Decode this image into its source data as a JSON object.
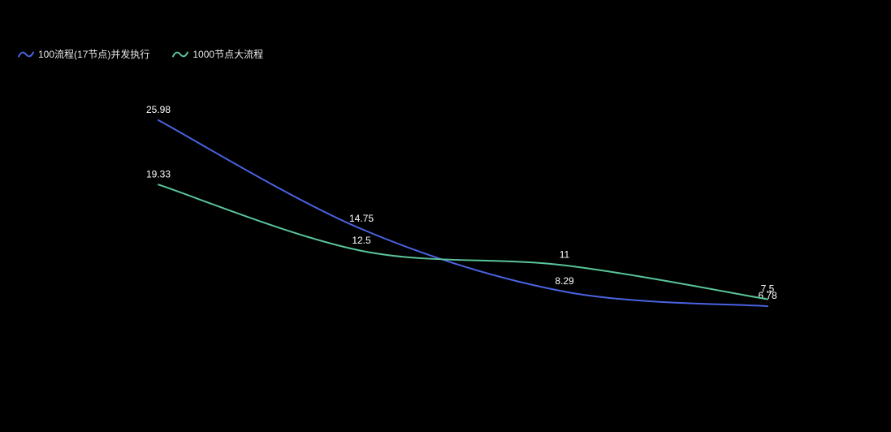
{
  "page": {
    "background": "#000000",
    "text_color": "#ffffff"
  },
  "legend": {
    "items": [
      {
        "label": "100流程(17节点)并发执行",
        "color": "#4a63e2"
      },
      {
        "label": "1000节点大流程",
        "color": "#5ac49a"
      }
    ]
  },
  "chart_data": {
    "type": "line",
    "smooth": true,
    "title": "",
    "xlabel": "",
    "ylabel": "",
    "categories": [
      "",
      "",
      "",
      ""
    ],
    "series": [
      {
        "name": "100流程(17节点)并发执行",
        "color": "#4a63e2",
        "values": [
          25.98,
          14.75,
          8.29,
          6.78
        ],
        "labels": [
          "25.98",
          "14.75",
          "8.29",
          "6.78"
        ]
      },
      {
        "name": "1000节点大流程",
        "color": "#5ac49a",
        "values": [
          19.33,
          12.5,
          11,
          7.5
        ],
        "labels": [
          "19.33",
          "12.5",
          "11",
          "7.5"
        ]
      }
    ],
    "ylim": [
      0,
      30
    ],
    "grid": false,
    "axes_visible": false,
    "data_labels": true,
    "legend_position": "top-left",
    "background": "#000000"
  }
}
